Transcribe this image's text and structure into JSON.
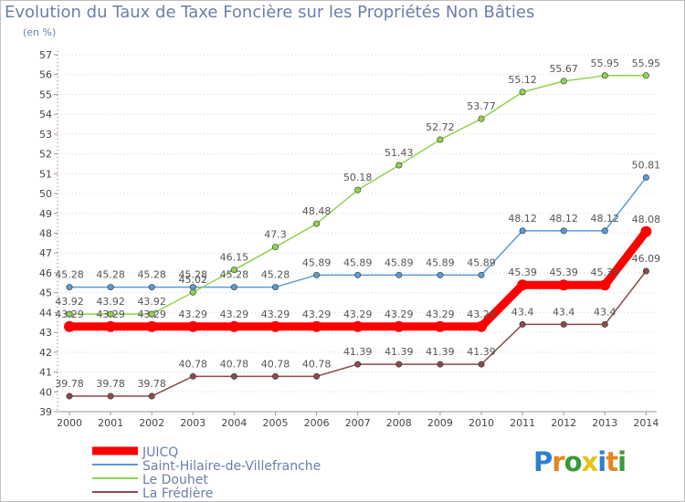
{
  "header": {
    "title": "Evolution du Taux de Taxe Foncière sur les Propriétés Non Bâties",
    "unit": "(en %)"
  },
  "logo": {
    "text": "Proxiti",
    "colors": [
      "#2e7fd0",
      "#e8841a",
      "#3a9a3a",
      "#e8c21a",
      "#2e7fd0",
      "#e8841a",
      "#3a9a3a"
    ]
  },
  "chart_data": {
    "type": "line",
    "title": "Evolution du Taux de Taxe Foncière sur les Propriétés Non Bâties",
    "ylabel": "(en %)",
    "xlabel": "",
    "ylim": [
      39,
      57
    ],
    "grid": "horizontal dotted",
    "legend": "bottom-left",
    "categories": [
      "2000",
      "2001",
      "2002",
      "2003",
      "2004",
      "2005",
      "2006",
      "2007",
      "2008",
      "2009",
      "2010",
      "2011",
      "2012",
      "2013",
      "2014"
    ],
    "yticks": [
      "39",
      "40",
      "41",
      "42",
      "43",
      "44",
      "45",
      "46",
      "47",
      "48",
      "49",
      "50",
      "51",
      "52",
      "53",
      "54",
      "55",
      "56",
      "57"
    ],
    "series": [
      {
        "name": "JUICQ",
        "color": "#ff0000",
        "thick": true,
        "values": [
          43.29,
          43.29,
          43.29,
          43.29,
          43.29,
          43.29,
          43.29,
          43.29,
          43.29,
          43.29,
          43.29,
          45.39,
          45.39,
          45.39,
          48.08
        ],
        "labels": [
          "43.29",
          "43.29",
          "43.29",
          "43.29",
          "43.29",
          "43.29",
          "43.29",
          "43.29",
          "43.29",
          "43.29",
          "43.29",
          "45.39",
          "45.39",
          "45.39",
          "48.08"
        ]
      },
      {
        "name": "Saint-Hilaire-de-Villefranche",
        "color": "#5b9bd5",
        "values": [
          45.28,
          45.28,
          45.28,
          45.28,
          45.28,
          45.28,
          45.89,
          45.89,
          45.89,
          45.89,
          45.89,
          48.12,
          48.12,
          48.12,
          50.81
        ],
        "labels": [
          "45.28",
          "45.28",
          "45.28",
          "45.28",
          "45.28",
          "45.28",
          "45.89",
          "45.89",
          "45.89",
          "45.89",
          "45.89",
          "48.12",
          "48.12",
          "48.12",
          "50.81"
        ]
      },
      {
        "name": "Le Douhet",
        "color": "#8ed44e",
        "values": [
          43.92,
          43.92,
          43.92,
          45.02,
          46.15,
          47.3,
          48.48,
          50.18,
          51.43,
          52.72,
          53.77,
          55.12,
          55.67,
          55.95,
          55.95
        ],
        "labels": [
          "43.92",
          "43.92",
          "43.92",
          "45.02",
          "46.15",
          "47.3",
          "48.48",
          "50.18",
          "51.43",
          "52.72",
          "53.77",
          "55.12",
          "55.67",
          "55.95",
          "55.95"
        ]
      },
      {
        "name": "La Frédière",
        "color": "#8b4a4a",
        "values": [
          39.78,
          39.78,
          39.78,
          40.78,
          40.78,
          40.78,
          40.78,
          41.39,
          41.39,
          41.39,
          41.39,
          43.4,
          43.4,
          43.4,
          46.09
        ],
        "labels": [
          "39.78",
          "39.78",
          "39.78",
          "40.78",
          "40.78",
          "40.78",
          "40.78",
          "41.39",
          "41.39",
          "41.39",
          "41.39",
          "43.4",
          "43.4",
          "43.4",
          "46.09"
        ]
      }
    ]
  }
}
